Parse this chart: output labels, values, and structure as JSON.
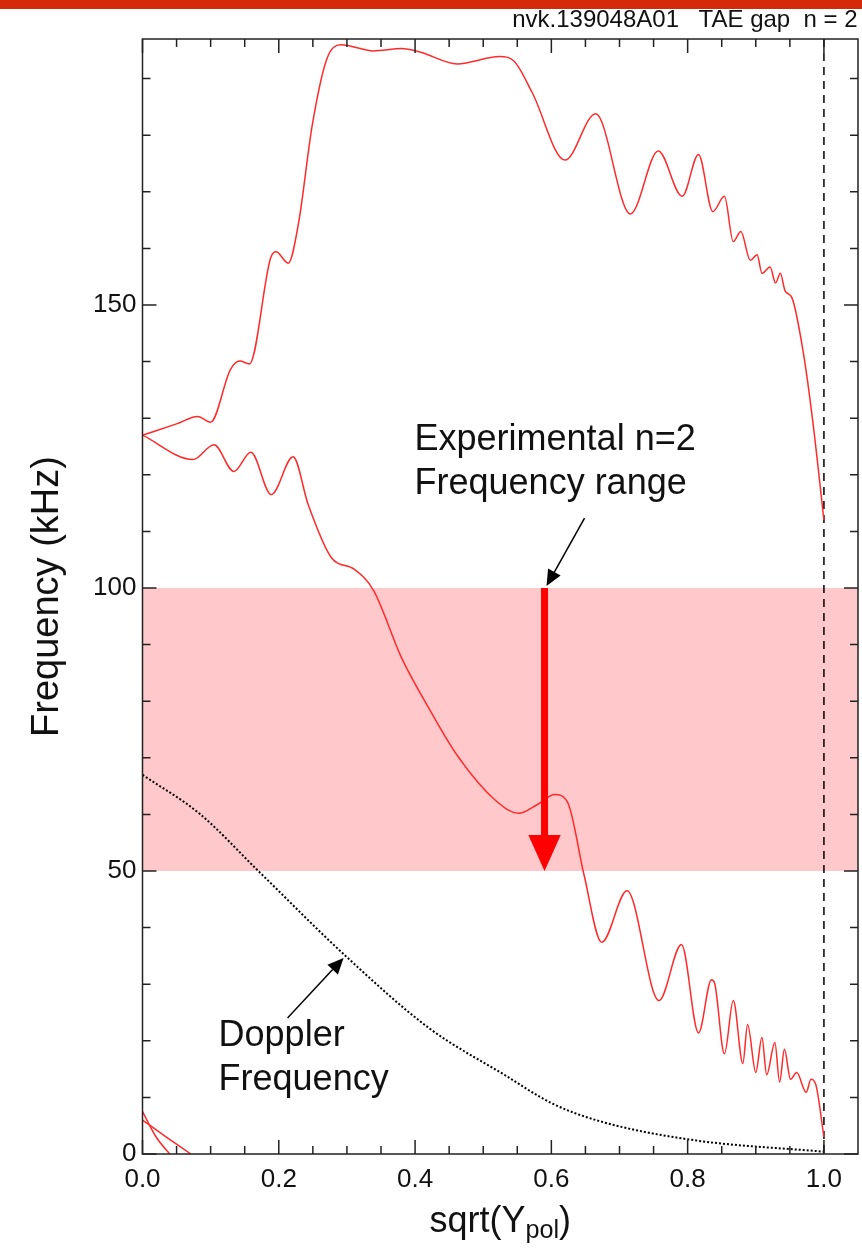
{
  "chart_data": {
    "type": "line",
    "title": "nvk.139048A01   TAE gap  n = 2",
    "xlabel": "sqrt(Υ$_{pol}$)",
    "ylabel": "Frequency (kHz)",
    "series": [
      {
        "color": "#ff2a2a",
        "x": [
          0,
          0.05,
          0.081,
          0.1,
          0.129,
          0.143,
          0.157,
          0.188,
          0.196,
          0.214,
          0.229,
          0.249,
          0.27,
          0.291,
          0.339,
          0.38,
          0.407,
          0.462,
          0.524,
          0.545,
          0.572,
          0.62,
          0.665,
          0.716,
          0.757,
          0.792,
          0.816,
          0.837,
          0.854,
          0.867,
          0.878,
          0.892,
          0.902,
          0.909,
          0.921,
          0.929,
          0.936,
          0.943,
          0.953,
          0.97,
          0.984,
          1.0
        ],
        "values": [
          127,
          129,
          130.3,
          129.3,
          138.6,
          140.1,
          139.6,
          158.3,
          159.4,
          157.4,
          164.5,
          181.7,
          193.3,
          196,
          194.9,
          195.3,
          194.7,
          192.6,
          193.9,
          193.1,
          187.5,
          175.6,
          183.8,
          166.1,
          177.2,
          169.2,
          176.6,
          166.5,
          169.2,
          161.2,
          163,
          157.9,
          158.9,
          155.6,
          156.7,
          153.9,
          155.6,
          152.5,
          151.3,
          141.4,
          129.1,
          112
        ]
      },
      {
        "color": "#ff2a2a",
        "x": [
          0,
          0.074,
          0.105,
          0.134,
          0.159,
          0.189,
          0.221,
          0.243,
          0.277,
          0.311,
          0.339,
          0.38,
          0.421,
          0.462,
          0.517,
          0.552,
          0.579,
          0.605,
          0.624,
          0.648,
          0.674,
          0.711,
          0.758,
          0.791,
          0.816,
          0.835,
          0.84,
          0.854,
          0.867,
          0.881,
          0.888,
          0.9,
          0.909,
          0.916,
          0.928,
          0.935,
          0.942,
          0.951,
          0.96,
          0.974,
          0.981,
          0.988,
          1.0
        ],
        "values": [
          127,
          122.7,
          125.3,
          120.6,
          124,
          116.5,
          123.2,
          114.8,
          105.4,
          103.3,
          99.6,
          87.7,
          78.6,
          70.4,
          62.6,
          60.2,
          61.7,
          63.5,
          62.1,
          49.3,
          37.4,
          46.5,
          27.1,
          37,
          21.4,
          30.8,
          30,
          17.7,
          27.1,
          16,
          22.9,
          14.4,
          20.6,
          14,
          19.7,
          12.7,
          18.5,
          13.2,
          14.4,
          10.9,
          13.2,
          12.3,
          3
        ]
      },
      {
        "color": "#000000",
        "line_style": "dotted",
        "x": [
          0,
          0.084,
          0.17,
          0.298,
          0.421,
          0.531,
          0.6,
          0.668,
          0.806,
          1.0
        ],
        "values": [
          67,
          60.1,
          50,
          35,
          22.2,
          14,
          9,
          5.9,
          2.5,
          0.4
        ]
      },
      {
        "color": "#ff2a2a",
        "x": [
          0,
          0.02,
          0.04
        ],
        "values": [
          7.5,
          3,
          0
        ]
      },
      {
        "color": "#ff2a2a",
        "x": [
          0,
          0.035,
          0.071
        ],
        "values": [
          6,
          3,
          0
        ]
      }
    ],
    "xlim": [
      0,
      1.05
    ],
    "ylim": [
      0,
      197
    ],
    "xticks": [
      {
        "value": 0,
        "label": "0.0"
      },
      {
        "value": 0.05,
        "label": null
      },
      {
        "value": 0.1,
        "label": null
      },
      {
        "value": 0.15,
        "label": null
      },
      {
        "value": 0.2,
        "label": "0.2"
      },
      {
        "value": 0.25,
        "label": null
      },
      {
        "value": 0.3,
        "label": null
      },
      {
        "value": 0.35,
        "label": null
      },
      {
        "value": 0.4,
        "label": "0.4"
      },
      {
        "value": 0.45,
        "label": null
      },
      {
        "value": 0.5,
        "label": null
      },
      {
        "value": 0.55,
        "label": null
      },
      {
        "value": 0.6,
        "label": "0.6"
      },
      {
        "value": 0.65,
        "label": null
      },
      {
        "value": 0.7,
        "label": null
      },
      {
        "value": 0.75,
        "label": null
      },
      {
        "value": 0.8,
        "label": "0.8"
      },
      {
        "value": 0.85,
        "label": null
      },
      {
        "value": 0.9,
        "label": null
      },
      {
        "value": 0.95,
        "label": null
      },
      {
        "value": 1.0,
        "label": "1.0"
      }
    ],
    "yticks": [
      0,
      {
        "value": 10,
        "label": null
      },
      {
        "value": 20,
        "label": null
      },
      {
        "value": 30,
        "label": null
      },
      {
        "value": 40,
        "label": null
      },
      50,
      {
        "value": 60,
        "label": null
      },
      {
        "value": 70,
        "label": null
      },
      {
        "value": 80,
        "label": null
      },
      {
        "value": 90,
        "label": null
      },
      100,
      {
        "value": 110,
        "label": null
      },
      {
        "value": 120,
        "label": null
      },
      {
        "value": 130,
        "label": null
      },
      {
        "value": 140,
        "label": null
      },
      150,
      {
        "value": 160,
        "label": null
      },
      {
        "value": 170,
        "label": null
      },
      {
        "value": 180,
        "label": null
      },
      {
        "value": 190,
        "label": null
      }
    ],
    "ref_lines": [
      {
        "axis": "x",
        "value": 1.0,
        "color": "#000000",
        "line_style": "dashed"
      }
    ],
    "bands": [
      {
        "axis": "y",
        "from": 50,
        "to": 100,
        "color": "#ffc8cb"
      }
    ],
    "annotations": [
      {
        "text": "Experimental n=2\nFrequency range",
        "x": 0.59,
        "y": 100
      },
      {
        "text": "Doppler\nFrequency",
        "x": 0.298,
        "y": 35
      }
    ],
    "grid": false,
    "legend": false,
    "marker": "none",
    "line_style": "solid"
  }
}
